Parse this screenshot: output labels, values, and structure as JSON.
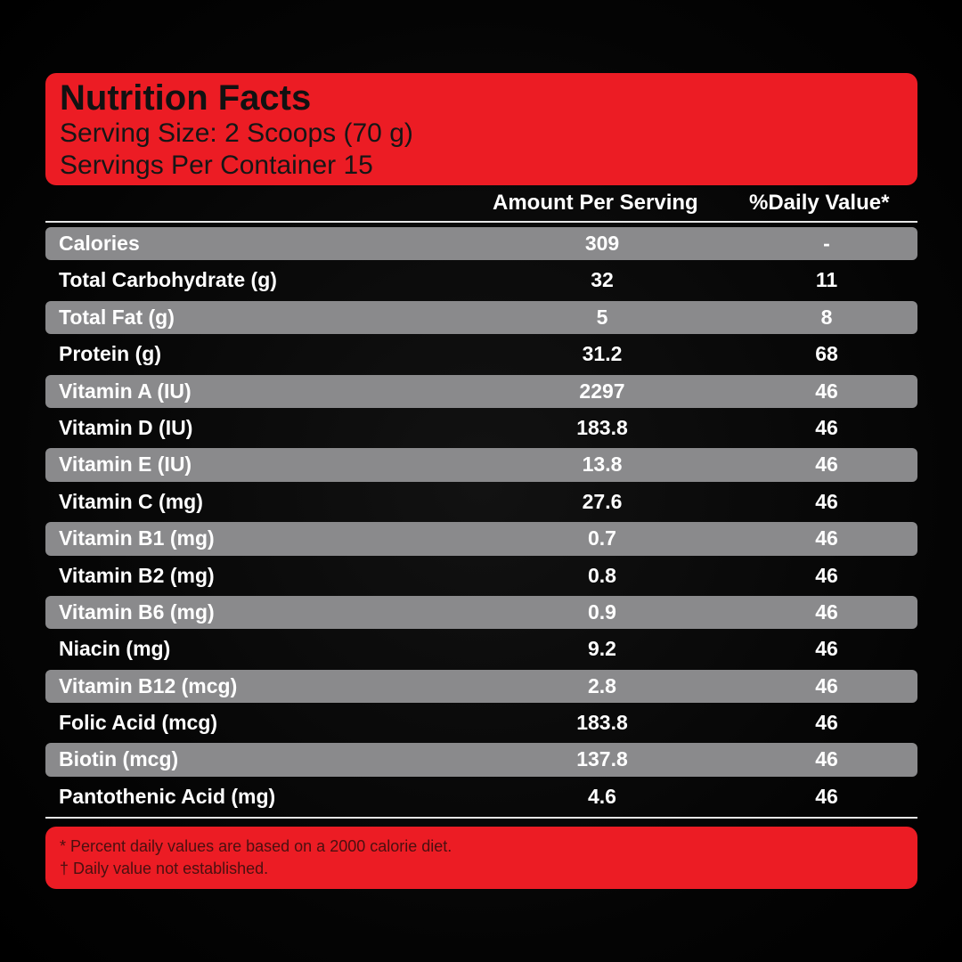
{
  "header": {
    "title": "Nutrition Facts",
    "serving_size": "Serving Size: 2 Scoops (70 g)",
    "servings_per_container": "Servings Per Container 15"
  },
  "columns": {
    "amount": "Amount Per Serving",
    "daily_value": "%Daily Value*"
  },
  "rows": [
    {
      "name": "Calories",
      "amount": "309",
      "dv": "-"
    },
    {
      "name": "Total Carbohydrate (g)",
      "amount": "32",
      "dv": "11"
    },
    {
      "name": "Total Fat (g)",
      "amount": "5",
      "dv": "8"
    },
    {
      "name": "Protein (g)",
      "amount": "31.2",
      "dv": "68"
    },
    {
      "name": "Vitamin A (IU)",
      "amount": "2297",
      "dv": "46"
    },
    {
      "name": "Vitamin D (IU)",
      "amount": "183.8",
      "dv": "46"
    },
    {
      "name": "Vitamin E (IU)",
      "amount": "13.8",
      "dv": "46"
    },
    {
      "name": "Vitamin C (mg)",
      "amount": "27.6",
      "dv": "46"
    },
    {
      "name": "Vitamin B1 (mg)",
      "amount": "0.7",
      "dv": "46"
    },
    {
      "name": "Vitamin B2 (mg)",
      "amount": "0.8",
      "dv": "46"
    },
    {
      "name": "Vitamin B6 (mg)",
      "amount": "0.9",
      "dv": "46"
    },
    {
      "name": "Niacin (mg)",
      "amount": "9.2",
      "dv": "46"
    },
    {
      "name": "Vitamin B12 (mcg)",
      "amount": "2.8",
      "dv": "46"
    },
    {
      "name": "Folic Acid (mcg)",
      "amount": "183.8",
      "dv": "46"
    },
    {
      "name": "Biotin (mcg)",
      "amount": "137.8",
      "dv": "46"
    },
    {
      "name": "Pantothenic Acid (mg)",
      "amount": "4.6",
      "dv": "46"
    }
  ],
  "footer": {
    "note_percent": "*  Percent daily values are based on a 2000 calorie diet.",
    "note_dagger": "† Daily value not established."
  },
  "colors": {
    "accent_red": "#ec1c24",
    "row_shade": "#8a8a8c",
    "background": "#000000"
  }
}
